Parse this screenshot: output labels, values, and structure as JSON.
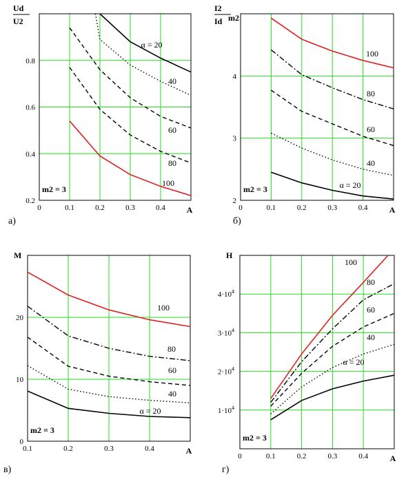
{
  "chart_data": [
    {
      "id": "a",
      "type": "line",
      "caption": "а)",
      "ylabel_top": "Ud",
      "ylabel_bottom": "U2",
      "xlabel": "A",
      "annotation": "m2 = 3",
      "xlim": [
        0,
        0.5
      ],
      "ylim": [
        0.2,
        1.0
      ],
      "xticks": [
        0,
        0.1,
        0.2,
        0.3,
        0.4,
        0.5
      ],
      "xtick_labels": [
        "0",
        "0.1",
        "0.2",
        "0.3",
        "0.4",
        ""
      ],
      "yticks": [
        0.2,
        0.4,
        0.6,
        0.8
      ],
      "ytick_labels": [
        "0.2",
        "0.4",
        "0.6",
        "0.8"
      ],
      "series": [
        {
          "label": "α = 20",
          "style": "solid",
          "color": "#000000",
          "x": [
            0.2,
            0.3,
            0.4,
            0.5
          ],
          "y": [
            1.0,
            0.88,
            0.81,
            0.75
          ]
        },
        {
          "label": "40",
          "style": "dotted",
          "color": "#000000",
          "x": [
            0.185,
            0.2,
            0.3,
            0.4,
            0.5
          ],
          "y": [
            1.0,
            0.89,
            0.78,
            0.71,
            0.65
          ]
        },
        {
          "label": "60",
          "style": "dashed",
          "color": "#000000",
          "x": [
            0.1,
            0.2,
            0.3,
            0.4,
            0.5
          ],
          "y": [
            0.94,
            0.76,
            0.64,
            0.56,
            0.51
          ]
        },
        {
          "label": "80",
          "style": "dashed",
          "color": "#000000",
          "x": [
            0.1,
            0.2,
            0.3,
            0.4,
            0.5
          ],
          "y": [
            0.77,
            0.59,
            0.48,
            0.41,
            0.36
          ]
        },
        {
          "label": "100",
          "style": "solid",
          "color": "#e02020",
          "x": [
            0.1,
            0.2,
            0.3,
            0.4,
            0.5
          ],
          "y": [
            0.54,
            0.39,
            0.31,
            0.26,
            0.22
          ]
        }
      ]
    },
    {
      "id": "b",
      "type": "line",
      "caption": "б)",
      "ylabel_top": "I2",
      "ylabel_bottom": "Id",
      "ylabel_suffix": "m2",
      "xlabel": "A",
      "annotation": "m2 = 3",
      "xlim": [
        0,
        0.5
      ],
      "ylim": [
        2,
        5
      ],
      "xticks": [
        0,
        0.1,
        0.2,
        0.3,
        0.4,
        0.5
      ],
      "xtick_labels": [
        "0",
        "0.1",
        "0.2",
        "0.3",
        "0.4",
        ""
      ],
      "yticks": [
        2,
        3,
        4
      ],
      "ytick_labels": [
        "2",
        "3",
        "4"
      ],
      "series": [
        {
          "label": "100",
          "style": "solid",
          "color": "#e02020",
          "x": [
            0.1,
            0.2,
            0.3,
            0.4,
            0.5
          ],
          "y": [
            4.93,
            4.59,
            4.4,
            4.25,
            4.13
          ]
        },
        {
          "label": "80",
          "style": "dashdot",
          "color": "#000000",
          "x": [
            0.1,
            0.2,
            0.3,
            0.4,
            0.5
          ],
          "y": [
            4.42,
            4.02,
            3.81,
            3.62,
            3.47
          ]
        },
        {
          "label": "60",
          "style": "dashed",
          "color": "#000000",
          "x": [
            0.1,
            0.2,
            0.3,
            0.4,
            0.5
          ],
          "y": [
            3.77,
            3.43,
            3.23,
            3.03,
            2.88
          ]
        },
        {
          "label": "40",
          "style": "dotted",
          "color": "#000000",
          "x": [
            0.1,
            0.2,
            0.3,
            0.4,
            0.5
          ],
          "y": [
            3.08,
            2.84,
            2.65,
            2.5,
            2.4
          ]
        },
        {
          "label": "α = 20",
          "style": "solid",
          "color": "#000000",
          "x": [
            0.1,
            0.2,
            0.3,
            0.4,
            0.5
          ],
          "y": [
            2.45,
            2.28,
            2.16,
            2.07,
            2.02
          ]
        }
      ]
    },
    {
      "id": "v",
      "type": "line",
      "caption": "в)",
      "ylabel_top": "M",
      "xlabel": "A",
      "annotation": "m2 = 3",
      "xlim": [
        0.1,
        0.5
      ],
      "ylim": [
        0,
        30
      ],
      "xticks": [
        0.1,
        0.2,
        0.3,
        0.4,
        0.5
      ],
      "xtick_labels": [
        "0.1",
        "0.2",
        "0.3",
        "0.4",
        ""
      ],
      "yticks": [
        0,
        10,
        20
      ],
      "ytick_labels": [
        "0",
        "10",
        "20"
      ],
      "series": [
        {
          "label": "100",
          "style": "solid",
          "color": "#e02020",
          "x": [
            0.1,
            0.2,
            0.3,
            0.4,
            0.5
          ],
          "y": [
            27.3,
            23.6,
            21.2,
            19.6,
            18.5
          ]
        },
        {
          "label": "80",
          "style": "dashdot",
          "color": "#000000",
          "x": [
            0.1,
            0.2,
            0.3,
            0.4,
            0.5
          ],
          "y": [
            21.8,
            17.0,
            15.0,
            13.7,
            13.0
          ]
        },
        {
          "label": "60",
          "style": "dashed",
          "color": "#000000",
          "x": [
            0.1,
            0.2,
            0.3,
            0.4,
            0.5
          ],
          "y": [
            16.8,
            12.1,
            10.5,
            9.6,
            9.0
          ]
        },
        {
          "label": "40",
          "style": "dotted",
          "color": "#000000",
          "x": [
            0.1,
            0.2,
            0.3,
            0.4,
            0.5
          ],
          "y": [
            12.2,
            8.4,
            7.2,
            6.6,
            6.2
          ]
        },
        {
          "label": "α = 20",
          "style": "solid",
          "color": "#000000",
          "x": [
            0.1,
            0.2,
            0.3,
            0.4,
            0.5
          ],
          "y": [
            8.1,
            5.3,
            4.5,
            4.0,
            3.8
          ]
        }
      ]
    },
    {
      "id": "g",
      "type": "line",
      "caption": "г)",
      "ylabel_top": "H",
      "xlabel": "A",
      "annotation": "m2 = 3",
      "xlim": [
        0,
        0.5
      ],
      "ylim": [
        0,
        50000
      ],
      "xticks": [
        0,
        0.1,
        0.2,
        0.3,
        0.4,
        0.5
      ],
      "xtick_labels": [
        "0",
        "0.1",
        "0.2",
        "0.3",
        "0.4",
        ""
      ],
      "yticks": [
        10000,
        20000,
        30000,
        40000
      ],
      "ytick_labels": [
        "1·10",
        "2·10",
        "3·10",
        "4·10"
      ],
      "ytick_exp": "4",
      "series": [
        {
          "label": "100",
          "style": "solid",
          "color": "#e02020",
          "x": [
            0.1,
            0.2,
            0.3,
            0.4,
            0.48
          ],
          "y": [
            13000,
            24500,
            34500,
            43000,
            50000
          ]
        },
        {
          "label": "80",
          "style": "dashdot",
          "color": "#000000",
          "x": [
            0.1,
            0.2,
            0.3,
            0.4,
            0.5
          ],
          "y": [
            12000,
            22500,
            31000,
            38500,
            42700
          ]
        },
        {
          "label": "60",
          "style": "dashed",
          "color": "#000000",
          "x": [
            0.1,
            0.2,
            0.3,
            0.4,
            0.5
          ],
          "y": [
            11000,
            19500,
            26500,
            31500,
            35000
          ]
        },
        {
          "label": "40",
          "style": "dotted",
          "color": "#000000",
          "x": [
            0.1,
            0.2,
            0.3,
            0.4,
            0.5
          ],
          "y": [
            9000,
            16000,
            21000,
            24500,
            27000
          ]
        },
        {
          "label": "α = 20",
          "style": "solid",
          "color": "#000000",
          "x": [
            0.1,
            0.2,
            0.3,
            0.4,
            0.5
          ],
          "y": [
            7500,
            12500,
            15500,
            17500,
            19000
          ]
        }
      ]
    }
  ]
}
